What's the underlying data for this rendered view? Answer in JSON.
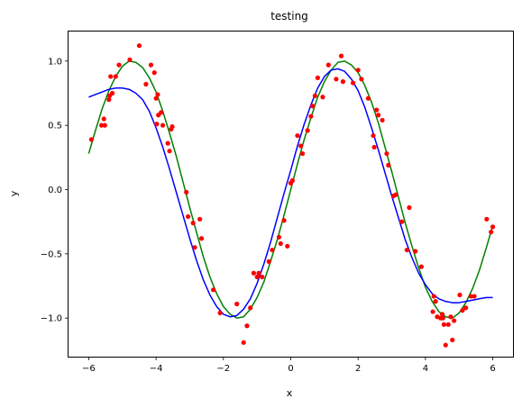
{
  "chart_data": {
    "type": "scatter",
    "title": "testing",
    "xlabel": "x",
    "ylabel": "y",
    "xlim": [
      -6.6,
      6.6
    ],
    "ylim": [
      -1.3,
      1.23
    ],
    "xticks": [
      -6,
      -4,
      -2,
      0,
      2,
      4,
      6
    ],
    "yticks": [
      -1.0,
      -0.5,
      0.0,
      0.5,
      1.0
    ],
    "xtick_labels": [
      "−6",
      "−4",
      "−2",
      "0",
      "2",
      "4",
      "6"
    ],
    "ytick_labels": [
      "−1.0",
      "−0.5",
      "0.0",
      "0.5",
      "1.0"
    ],
    "grid": false,
    "legend": "none",
    "series": [
      {
        "kind": "scatter",
        "color": "#ff0000",
        "x": [
          -5.92,
          -5.62,
          -5.55,
          -5.52,
          -5.4,
          -5.38,
          -5.35,
          -5.3,
          -5.2,
          -5.1,
          -4.78,
          -4.5,
          -4.3,
          -4.15,
          -4.05,
          -4.0,
          -3.98,
          -3.95,
          -3.93,
          -3.85,
          -3.8,
          -3.65,
          -3.6,
          -3.55,
          -3.52,
          -3.1,
          -3.05,
          -2.9,
          -2.85,
          -2.7,
          -2.65,
          -2.3,
          -2.1,
          -1.6,
          -1.4,
          -1.3,
          -1.2,
          -1.1,
          -1.0,
          -0.95,
          -0.85,
          -0.65,
          -0.55,
          -0.35,
          -0.3,
          -0.2,
          -0.1,
          0.0,
          0.05,
          0.2,
          0.3,
          0.35,
          0.5,
          0.6,
          0.65,
          0.72,
          0.8,
          0.95,
          1.12,
          1.35,
          1.5,
          1.55,
          1.85,
          2.0,
          2.1,
          2.3,
          2.45,
          2.48,
          2.55,
          2.6,
          2.72,
          2.85,
          2.9,
          3.05,
          3.12,
          3.3,
          3.45,
          3.52,
          3.7,
          3.88,
          4.22,
          4.25,
          4.3,
          4.35,
          4.45,
          4.5,
          4.52,
          4.55,
          4.6,
          4.68,
          4.75,
          4.8,
          4.85,
          5.02,
          5.1,
          5.2,
          5.35,
          5.45,
          5.82,
          5.95,
          6.0
        ],
        "y": [
          0.39,
          0.5,
          0.55,
          0.5,
          0.7,
          0.73,
          0.88,
          0.75,
          0.88,
          0.97,
          1.01,
          1.12,
          0.82,
          0.97,
          0.91,
          0.71,
          0.51,
          0.74,
          0.58,
          0.6,
          0.5,
          0.36,
          0.3,
          0.47,
          0.49,
          -0.02,
          -0.21,
          -0.26,
          -0.45,
          -0.23,
          -0.38,
          -0.78,
          -0.96,
          -0.89,
          -1.19,
          -1.06,
          -0.92,
          -0.65,
          -0.68,
          -0.65,
          -0.68,
          -0.56,
          -0.47,
          -0.37,
          -0.42,
          -0.24,
          -0.44,
          0.05,
          0.07,
          0.42,
          0.34,
          0.28,
          0.46,
          0.57,
          0.65,
          0.73,
          0.87,
          0.72,
          0.97,
          0.86,
          1.04,
          0.84,
          0.83,
          0.93,
          0.86,
          0.71,
          0.42,
          0.33,
          0.62,
          0.58,
          0.54,
          0.28,
          0.19,
          -0.05,
          -0.04,
          -0.25,
          -0.47,
          -0.14,
          -0.48,
          -0.6,
          -0.95,
          -0.83,
          -0.87,
          -0.99,
          -1.0,
          -0.97,
          -1.0,
          -1.05,
          -1.21,
          -1.05,
          -0.99,
          -1.17,
          -1.02,
          -0.82,
          -0.94,
          -0.92,
          -0.83,
          -0.83,
          -0.23,
          -0.33,
          -0.29
        ]
      },
      {
        "kind": "line",
        "color": "#008000",
        "x": [
          -6.0,
          -5.8,
          -5.6,
          -5.4,
          -5.2,
          -5.0,
          -4.8,
          -4.6,
          -4.4,
          -4.2,
          -4.0,
          -3.8,
          -3.6,
          -3.4,
          -3.2,
          -3.0,
          -2.8,
          -2.6,
          -2.4,
          -2.2,
          -2.0,
          -1.8,
          -1.6,
          -1.4,
          -1.2,
          -1.0,
          -0.8,
          -0.6,
          -0.4,
          -0.2,
          0.0,
          0.2,
          0.4,
          0.6,
          0.8,
          1.0,
          1.2,
          1.4,
          1.6,
          1.8,
          2.0,
          2.2,
          2.4,
          2.6,
          2.8,
          3.0,
          3.2,
          3.4,
          3.6,
          3.8,
          4.0,
          4.2,
          4.4,
          4.6,
          4.8,
          5.0,
          5.2,
          5.4,
          5.6,
          5.8,
          6.0
        ],
        "y": [
          0.28,
          0.46,
          0.63,
          0.77,
          0.88,
          0.96,
          1.0,
          0.99,
          0.95,
          0.87,
          0.76,
          0.61,
          0.44,
          0.26,
          0.06,
          -0.14,
          -0.33,
          -0.52,
          -0.68,
          -0.81,
          -0.91,
          -0.97,
          -1.0,
          -0.99,
          -0.93,
          -0.84,
          -0.72,
          -0.56,
          -0.39,
          -0.2,
          0.0,
          0.2,
          0.39,
          0.56,
          0.72,
          0.84,
          0.93,
          0.99,
          1.0,
          0.97,
          0.91,
          0.81,
          0.68,
          0.52,
          0.33,
          0.14,
          -0.06,
          -0.26,
          -0.44,
          -0.61,
          -0.76,
          -0.87,
          -0.95,
          -0.99,
          -1.0,
          -0.96,
          -0.88,
          -0.77,
          -0.63,
          -0.46,
          -0.28
        ]
      },
      {
        "kind": "line",
        "color": "#0000ff",
        "x": [
          -6.0,
          -5.8,
          -5.6,
          -5.4,
          -5.2,
          -5.0,
          -4.8,
          -4.6,
          -4.4,
          -4.2,
          -4.0,
          -3.8,
          -3.6,
          -3.4,
          -3.2,
          -3.0,
          -2.8,
          -2.6,
          -2.4,
          -2.2,
          -2.0,
          -1.8,
          -1.6,
          -1.4,
          -1.2,
          -1.0,
          -0.8,
          -0.6,
          -0.4,
          -0.2,
          0.0,
          0.2,
          0.4,
          0.6,
          0.8,
          1.0,
          1.2,
          1.4,
          1.6,
          1.8,
          2.0,
          2.2,
          2.4,
          2.6,
          2.8,
          3.0,
          3.2,
          3.4,
          3.6,
          3.8,
          4.0,
          4.2,
          4.4,
          4.6,
          4.8,
          5.0,
          5.2,
          5.4,
          5.6,
          5.8,
          6.0
        ],
        "y": [
          0.72,
          0.74,
          0.76,
          0.78,
          0.79,
          0.79,
          0.78,
          0.75,
          0.7,
          0.61,
          0.48,
          0.33,
          0.16,
          -0.02,
          -0.2,
          -0.38,
          -0.55,
          -0.7,
          -0.82,
          -0.91,
          -0.97,
          -0.99,
          -0.98,
          -0.93,
          -0.85,
          -0.73,
          -0.58,
          -0.41,
          -0.22,
          -0.03,
          0.15,
          0.34,
          0.51,
          0.66,
          0.79,
          0.88,
          0.93,
          0.94,
          0.92,
          0.86,
          0.77,
          0.64,
          0.48,
          0.31,
          0.13,
          -0.05,
          -0.22,
          -0.39,
          -0.53,
          -0.65,
          -0.74,
          -0.81,
          -0.85,
          -0.87,
          -0.88,
          -0.88,
          -0.87,
          -0.86,
          -0.85,
          -0.84,
          -0.84
        ]
      }
    ]
  }
}
